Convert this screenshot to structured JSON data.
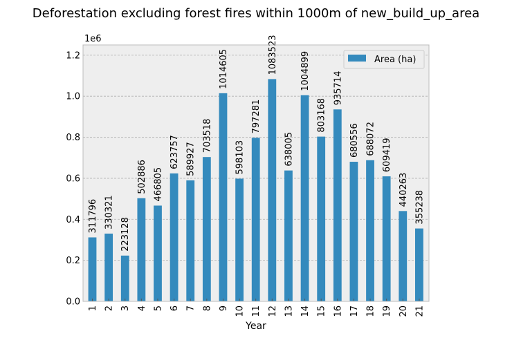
{
  "chart_data": {
    "type": "bar",
    "title": "Deforestation excluding forest fires within 1000m of new_build_up_area",
    "xlabel": "Year",
    "ylabel": "",
    "y_offset_label": "1e6",
    "ylim": [
      0,
      1250000
    ],
    "y_ticks": [
      0,
      200000,
      400000,
      600000,
      800000,
      1000000,
      1200000
    ],
    "y_tick_labels": [
      "0.0",
      "0.2",
      "0.4",
      "0.6",
      "0.8",
      "1.0",
      "1.2"
    ],
    "categories": [
      "1",
      "2",
      "3",
      "4",
      "5",
      "6",
      "7",
      "8",
      "9",
      "10",
      "11",
      "12",
      "13",
      "14",
      "15",
      "16",
      "17",
      "18",
      "19",
      "20",
      "21"
    ],
    "series": [
      {
        "name": "Area (ha)",
        "values": [
          311796,
          330321,
          223128,
          502886,
          466805,
          623757,
          589927,
          703518,
          1014605,
          598103,
          797281,
          1083523,
          638005,
          1004899,
          803168,
          935714,
          680556,
          688072,
          609419,
          440263,
          355238
        ]
      }
    ],
    "grid": true,
    "legend_position": "top-right",
    "colors": {
      "bar": "#348abd",
      "plot_bg": "#eeeeee",
      "grid": "#b0b0b0"
    }
  }
}
